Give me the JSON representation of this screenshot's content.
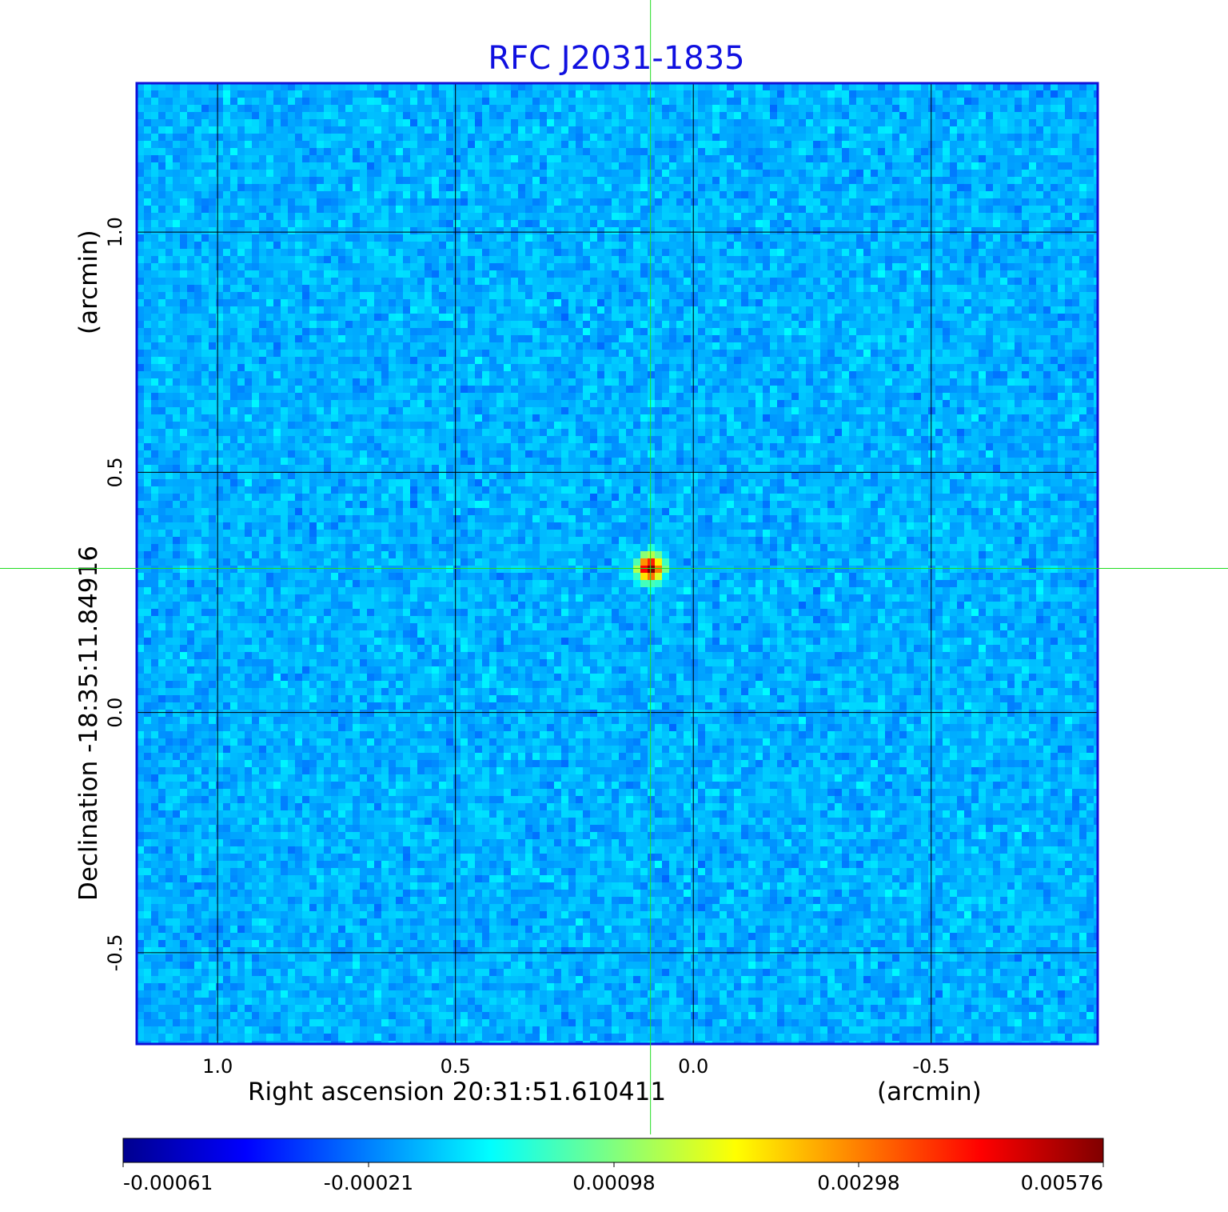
{
  "chart_data": {
    "type": "heatmap",
    "title": "RFC J2031-1835",
    "xlabel": "Right ascension  20:31:51.610411",
    "xlabel_unit": "(arcmin)",
    "ylabel": "Declination  -18:35:11.84916",
    "ylabel_unit": "(arcmin)",
    "xlim": [
      1.17,
      -0.85
    ],
    "ylim": [
      -0.69,
      1.31
    ],
    "x_ticks": [
      {
        "value": 1.0,
        "label": "1.0"
      },
      {
        "value": 0.5,
        "label": "0.5"
      },
      {
        "value": 0.0,
        "label": "0.0"
      },
      {
        "value": -0.5,
        "label": "-0.5"
      }
    ],
    "y_ticks": [
      {
        "value": 1.0,
        "label": "1.0"
      },
      {
        "value": 0.5,
        "label": "0.5"
      },
      {
        "value": 0.0,
        "label": "0.0"
      },
      {
        "value": -0.5,
        "label": "-0.5"
      }
    ],
    "grid": true,
    "colormap": "jet",
    "colorbar": {
      "range": [
        -0.00061,
        0.00576
      ],
      "placement": "bottom",
      "ticks": [
        {
          "value": -0.00061,
          "label": "-0.00061"
        },
        {
          "value": -0.00021,
          "label": "-0.00021"
        },
        {
          "value": 0.00098,
          "label": "0.00098"
        },
        {
          "value": 0.00298,
          "label": "0.00298"
        },
        {
          "value": 0.00576,
          "label": "0.00576"
        }
      ]
    },
    "source": {
      "x": 0.09,
      "y": 0.3,
      "peak": 0.00576
    },
    "crosshair": {
      "x": 0.09,
      "y": 0.3
    }
  },
  "colors": {
    "title": "#1010e0",
    "frame": "#1010d8",
    "grid": "#000000",
    "crosshair": "#22dd22"
  }
}
